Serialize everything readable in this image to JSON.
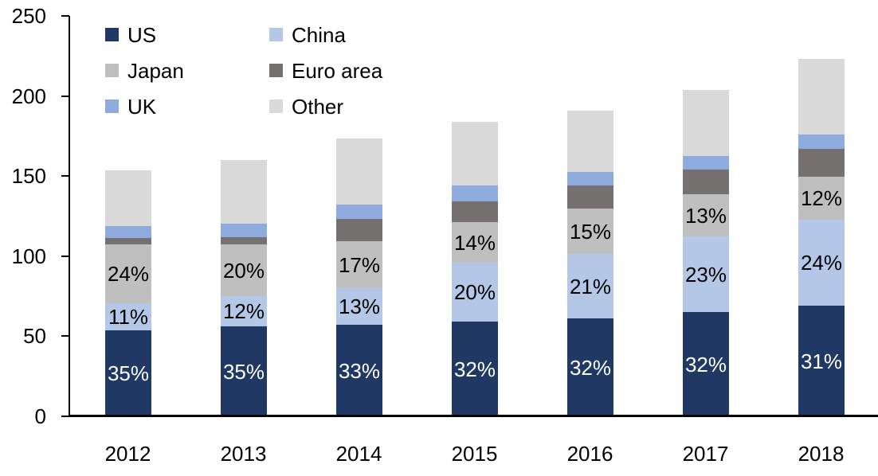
{
  "chart_data": {
    "type": "bar",
    "stacked": true,
    "title": "",
    "xlabel": "",
    "ylabel": "",
    "grid": false,
    "background": "#ffffff",
    "axis_color": "#000000",
    "categories": [
      "2012",
      "2013",
      "2014",
      "2015",
      "2016",
      "2017",
      "2018"
    ],
    "totals": [
      153.5,
      160,
      173.5,
      184,
      191,
      204,
      223
    ],
    "series": [
      {
        "name": "US",
        "color": "#1F3864",
        "values": [
          53.7,
          56.0,
          57.3,
          58.9,
          61.1,
          65.3,
          69.1
        ],
        "labels": [
          "35%",
          "35%",
          "33%",
          "32%",
          "32%",
          "32%",
          "31%"
        ],
        "label_color": "#FFFFFF"
      },
      {
        "name": "China",
        "color": "#B4C7E7",
        "values": [
          16.9,
          19.2,
          22.6,
          36.8,
          40.1,
          46.9,
          53.5
        ],
        "labels": [
          "11%",
          "12%",
          "13%",
          "20%",
          "21%",
          "23%",
          "24%"
        ],
        "label_color": "#000000"
      },
      {
        "name": "Japan",
        "color": "#BFBFBF",
        "values": [
          36.8,
          32.0,
          29.5,
          25.8,
          28.7,
          26.5,
          26.8
        ],
        "labels": [
          "24%",
          "20%",
          "17%",
          "14%",
          "15%",
          "13%",
          "12%"
        ],
        "label_color": "#000000"
      },
      {
        "name": "Euro area",
        "color": "#767171",
        "values": [
          3.7,
          4.6,
          13.8,
          12.7,
          14.2,
          15.2,
          17.6
        ],
        "labels": null,
        "label_color": "#000000"
      },
      {
        "name": "UK",
        "color": "#8FAADC",
        "values": [
          7.9,
          8.7,
          9.1,
          9.7,
          8.6,
          8.8,
          9.0
        ],
        "labels": null,
        "label_color": "#000000"
      },
      {
        "name": "Other",
        "color": "#D9D9D9",
        "values": [
          34.5,
          39.5,
          41.2,
          40.1,
          38.3,
          41.3,
          47.0
        ],
        "labels": null,
        "label_color": "#000000"
      }
    ],
    "y_axis": {
      "min": 0,
      "max": 250,
      "step": 50,
      "tick_labels": [
        "0",
        "50",
        "100",
        "150",
        "200",
        "250"
      ]
    },
    "legend": {
      "position": "top-left-inside",
      "columns": 2,
      "row_order": [
        [
          "US",
          "China"
        ],
        [
          "Japan",
          "Euro area"
        ],
        [
          "UK",
          "Other"
        ]
      ]
    }
  }
}
